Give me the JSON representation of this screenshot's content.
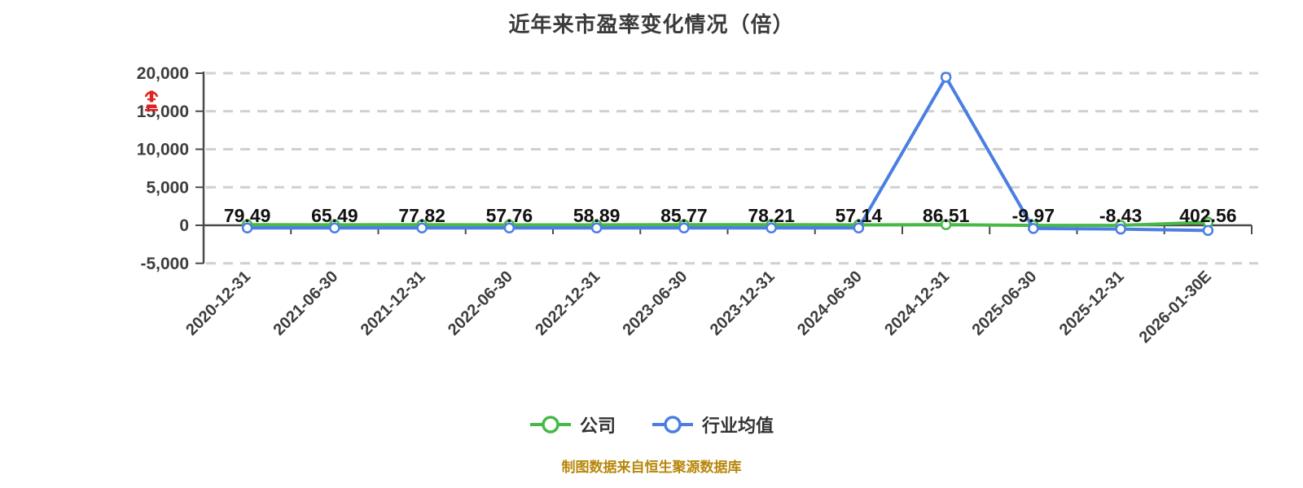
{
  "title": "近年来市盈率变化情况（倍）",
  "colors": {
    "company": "#46b946",
    "industry": "#4a7ee2",
    "title_text": "#3b3b3b",
    "axis": "#4a4a4a",
    "axis_label": "#3d3d3d",
    "grid": "#d0d0d0",
    "data_label": "#111111",
    "marker_fill": "#ffffff",
    "footer_text": "#b8860b",
    "seal": "#e02222"
  },
  "icons": {
    "seal": "red-seal-icon"
  },
  "chart_data": {
    "type": "line",
    "title": "近年来市盈率变化情况（倍）",
    "unit": "倍",
    "categories": [
      "2020-12-31",
      "2021-06-30",
      "2021-12-31",
      "2022-06-30",
      "2022-12-31",
      "2023-06-30",
      "2023-12-31",
      "2024-06-30",
      "2024-12-31",
      "2025-06-30",
      "2025-12-31",
      "2026-01-30E"
    ],
    "series": [
      {
        "name": "公司",
        "color_key": "company",
        "values": [
          79.49,
          65.49,
          77.82,
          57.76,
          58.89,
          85.77,
          78.21,
          57.14,
          86.51,
          -9.97,
          -8.43,
          402.56
        ],
        "labels_shown": true
      },
      {
        "name": "行业均值",
        "color_key": "industry",
        "values": [
          -350,
          -350,
          -350,
          -350,
          -350,
          -350,
          -350,
          -350,
          19470,
          -420,
          -500,
          -680
        ],
        "labels_shown": false,
        "note": "values unlabeled in chart; estimated from pixel positions, only the 2024-12-31 peak (≈19,470, just under the 20,000 gridline) is readable"
      }
    ],
    "point_labels": [
      "79.49",
      "65.49",
      "77.82",
      "57.76",
      "58.89",
      "85.77",
      "78.21",
      "57.14",
      "86.51",
      "-9.97",
      "-8.43",
      "402.56"
    ],
    "ylim": [
      -5000,
      20000
    ],
    "y_ticks": {
      "values": [
        20000,
        15000,
        10000,
        5000,
        0,
        -5000
      ],
      "labels": [
        "20,000",
        "15,000",
        "10,000",
        "5,000",
        "0",
        "-5,000"
      ]
    },
    "grid": "horizontal dashed gridlines, solid axis at 0",
    "legend_position": "bottom",
    "x_label_rotation": -45
  },
  "legend": {
    "items": [
      {
        "label": "公司",
        "color_key": "company"
      },
      {
        "label": "行业均值",
        "color_key": "industry"
      }
    ]
  },
  "footer": {
    "text": "制图数据来自恒生聚源数据库"
  }
}
